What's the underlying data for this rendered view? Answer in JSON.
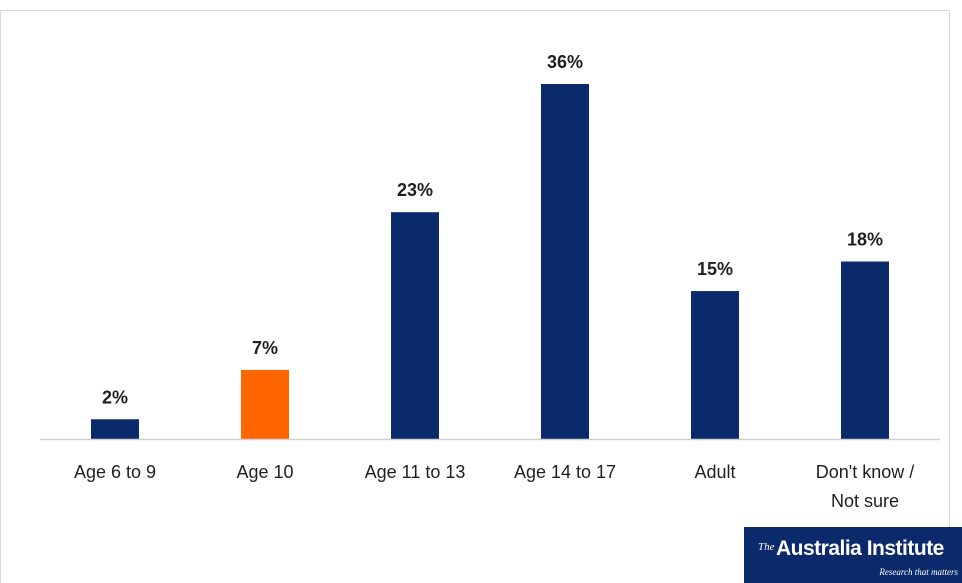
{
  "chart_data": {
    "type": "bar",
    "categories": [
      "Age 6 to 9",
      "Age 10",
      "Age 11 to 13",
      "Age 14 to 17",
      "Adult",
      "Don't know / Not sure"
    ],
    "category_lines": [
      [
        "Age 6 to 9"
      ],
      [
        "Age 10"
      ],
      [
        "Age 11 to 13"
      ],
      [
        "Age 14 to 17"
      ],
      [
        "Adult"
      ],
      [
        "Don't know /",
        "Not sure"
      ]
    ],
    "values": [
      2,
      7,
      23,
      36,
      15,
      18
    ],
    "data_labels": [
      "2%",
      "7%",
      "23%",
      "36%",
      "15%",
      "18%"
    ],
    "unit": "%",
    "ylim": [
      0,
      36
    ],
    "grid": false,
    "colors": {
      "default_bar": "#0a2a6b",
      "highlight_bar": "#ff6600",
      "highlight_category": "Age 10",
      "axis": "#d0d0d0"
    }
  },
  "logo": {
    "the": "The",
    "name": "Australia Institute",
    "tagline": "Research that matters"
  }
}
